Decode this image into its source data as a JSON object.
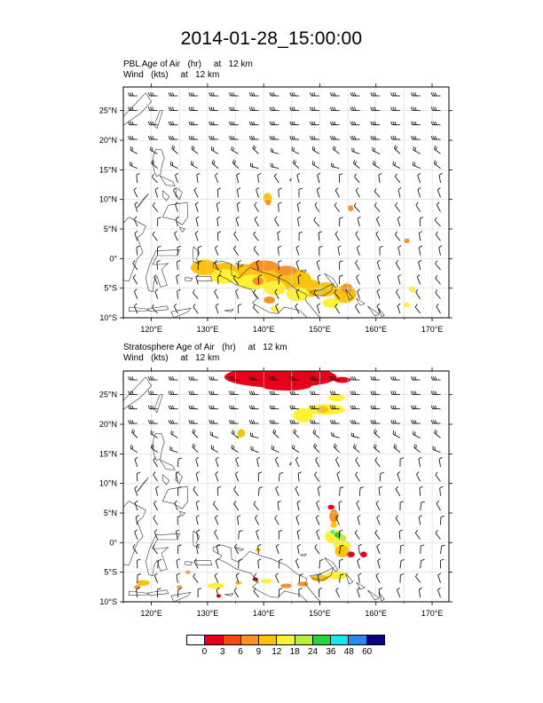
{
  "title": "2014-01-28_15:00:00",
  "panels": [
    {
      "id": "pbl",
      "subtitle_line1": "PBL Age of Air   (hr)     at   12 km",
      "subtitle_line2": "Wind   (kts)     at   12 km"
    },
    {
      "id": "strat",
      "subtitle_line1": "Stratosphere Age of Air   (hr)     at   12 km",
      "subtitle_line2": "Wind   (kts)     at   12 km"
    }
  ],
  "map": {
    "lon_range": [
      115,
      173
    ],
    "lat_range": [
      -10,
      29
    ],
    "lon_ticks": [
      "120°E",
      "130°E",
      "140°E",
      "150°E",
      "160°E",
      "170°E"
    ],
    "lat_ticks": [
      "25°N",
      "20°N",
      "15°N",
      "10°N",
      "5°N",
      "0°",
      "5°S",
      "10°S"
    ],
    "grid": true
  },
  "legend": {
    "colors": [
      "#ffffff",
      "#e8001a",
      "#f64a10",
      "#f8932a",
      "#fbc30f",
      "#fff233",
      "#b6f23a",
      "#28d33c",
      "#16e6ee",
      "#2b86ee",
      "#0c0080"
    ],
    "labels": [
      "0",
      "3",
      "6",
      "9",
      "12",
      "18",
      "24",
      "36",
      "48",
      "60"
    ]
  }
}
